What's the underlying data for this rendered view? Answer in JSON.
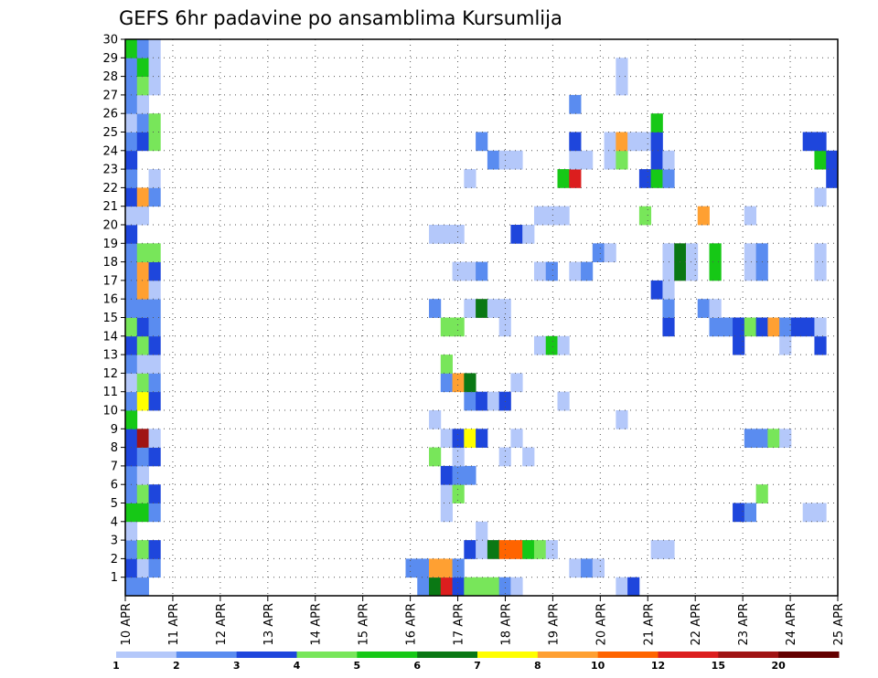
{
  "chart_data": {
    "type": "heatmap",
    "title": "GEFS 6hr padavine po ansamblima Kursumlija",
    "xlabel": "",
    "ylabel": "",
    "x_ticks": [
      "10 APR",
      "11 APR",
      "12 APR",
      "13 APR",
      "14 APR",
      "15 APR",
      "16 APR",
      "17 APR",
      "18 APR",
      "19 APR",
      "20 APR",
      "21 APR",
      "22 APR",
      "23 APR",
      "24 APR",
      "25 APR"
    ],
    "y_ticks": [
      "1",
      "2",
      "3",
      "4",
      "5",
      "6",
      "7",
      "8",
      "9",
      "10",
      "11",
      "12",
      "13",
      "14",
      "15",
      "16",
      "17",
      "18",
      "19",
      "20",
      "21",
      "22",
      "23",
      "24",
      "25",
      "26",
      "27",
      "28",
      "29",
      "30"
    ],
    "time_steps_6h": 61,
    "members": 30,
    "grid": "dotted",
    "legend": {
      "position": "bottom",
      "levels": [
        "1",
        "2",
        "3",
        "4",
        "5",
        "6",
        "7",
        "8",
        "10",
        "12",
        "15",
        "20"
      ],
      "colors": [
        "#b4c8fa",
        "#5a8cf0",
        "#1e46dc",
        "#78e65a",
        "#16c816",
        "#0a7814",
        "#ffff00",
        "#ffa032",
        "#ff6400",
        "#dc1e1e",
        "#a01414",
        "#640000"
      ]
    },
    "cell_encoding": "member: [[time_step_index, color_bin_index], ...]",
    "cells": {
      "1": [
        [
          0,
          1
        ],
        [
          1,
          1
        ],
        [
          25,
          1
        ],
        [
          26,
          5
        ],
        [
          27,
          9
        ],
        [
          28,
          2
        ],
        [
          29,
          3
        ],
        [
          30,
          3
        ],
        [
          31,
          3
        ],
        [
          32,
          1
        ],
        [
          33,
          0
        ],
        [
          42,
          0
        ],
        [
          43,
          2
        ]
      ],
      "2": [
        [
          0,
          2
        ],
        [
          1,
          0
        ],
        [
          2,
          1
        ],
        [
          24,
          1
        ],
        [
          25,
          1
        ],
        [
          26,
          7
        ],
        [
          27,
          7
        ],
        [
          28,
          1
        ],
        [
          38,
          0
        ],
        [
          39,
          1
        ],
        [
          40,
          0
        ]
      ],
      "3": [
        [
          0,
          1
        ],
        [
          1,
          3
        ],
        [
          2,
          2
        ],
        [
          29,
          2
        ],
        [
          30,
          0
        ],
        [
          31,
          5
        ],
        [
          32,
          8
        ],
        [
          33,
          8
        ],
        [
          34,
          4
        ],
        [
          35,
          3
        ],
        [
          36,
          0
        ],
        [
          45,
          0
        ],
        [
          46,
          0
        ]
      ],
      "4": [
        [
          0,
          0
        ],
        [
          30,
          0
        ]
      ],
      "5": [
        [
          0,
          4
        ],
        [
          1,
          4
        ],
        [
          2,
          1
        ],
        [
          27,
          0
        ],
        [
          52,
          2
        ],
        [
          53,
          1
        ],
        [
          58,
          0
        ],
        [
          59,
          0
        ]
      ],
      "6": [
        [
          0,
          1
        ],
        [
          1,
          3
        ],
        [
          2,
          2
        ],
        [
          27,
          0
        ],
        [
          28,
          3
        ],
        [
          54,
          3
        ]
      ],
      "7": [
        [
          0,
          1
        ],
        [
          1,
          0
        ],
        [
          27,
          2
        ],
        [
          28,
          1
        ],
        [
          29,
          1
        ]
      ],
      "8": [
        [
          0,
          2
        ],
        [
          1,
          1
        ],
        [
          2,
          2
        ],
        [
          26,
          3
        ],
        [
          28,
          0
        ],
        [
          32,
          0
        ],
        [
          34,
          0
        ]
      ],
      "9": [
        [
          0,
          2
        ],
        [
          1,
          10
        ],
        [
          2,
          0
        ],
        [
          27,
          0
        ],
        [
          28,
          2
        ],
        [
          29,
          6
        ],
        [
          30,
          2
        ],
        [
          33,
          0
        ],
        [
          53,
          1
        ],
        [
          54,
          1
        ],
        [
          55,
          3
        ],
        [
          56,
          0
        ]
      ],
      "10": [
        [
          0,
          4
        ],
        [
          26,
          0
        ],
        [
          42,
          0
        ]
      ],
      "11": [
        [
          0,
          1
        ],
        [
          1,
          6
        ],
        [
          2,
          2
        ],
        [
          29,
          1
        ],
        [
          30,
          2
        ],
        [
          31,
          0
        ],
        [
          32,
          2
        ],
        [
          37,
          0
        ]
      ],
      "12": [
        [
          0,
          0
        ],
        [
          1,
          3
        ],
        [
          2,
          1
        ],
        [
          27,
          1
        ],
        [
          28,
          7
        ],
        [
          29,
          5
        ],
        [
          33,
          0
        ]
      ],
      "13": [
        [
          0,
          1
        ],
        [
          1,
          0
        ],
        [
          2,
          0
        ],
        [
          27,
          3
        ]
      ],
      "14": [
        [
          0,
          2
        ],
        [
          1,
          3
        ],
        [
          2,
          2
        ],
        [
          35,
          0
        ],
        [
          36,
          4
        ],
        [
          37,
          0
        ],
        [
          52,
          2
        ],
        [
          56,
          0
        ],
        [
          59,
          2
        ]
      ],
      "15": [
        [
          0,
          3
        ],
        [
          1,
          2
        ],
        [
          2,
          1
        ],
        [
          27,
          3
        ],
        [
          28,
          3
        ],
        [
          32,
          0
        ],
        [
          46,
          2
        ],
        [
          50,
          1
        ],
        [
          51,
          1
        ],
        [
          52,
          2
        ],
        [
          53,
          3
        ],
        [
          54,
          2
        ],
        [
          55,
          7
        ],
        [
          56,
          1
        ],
        [
          57,
          2
        ],
        [
          58,
          2
        ],
        [
          59,
          0
        ]
      ],
      "16": [
        [
          0,
          1
        ],
        [
          1,
          1
        ],
        [
          2,
          1
        ],
        [
          26,
          1
        ],
        [
          29,
          0
        ],
        [
          30,
          5
        ],
        [
          31,
          0
        ],
        [
          32,
          0
        ],
        [
          46,
          1
        ],
        [
          49,
          1
        ],
        [
          50,
          0
        ]
      ],
      "17": [
        [
          0,
          1
        ],
        [
          1,
          7
        ],
        [
          2,
          0
        ],
        [
          45,
          2
        ],
        [
          46,
          0
        ]
      ],
      "18": [
        [
          0,
          1
        ],
        [
          1,
          7
        ],
        [
          2,
          2
        ],
        [
          28,
          0
        ],
        [
          29,
          0
        ],
        [
          30,
          1
        ],
        [
          35,
          0
        ],
        [
          36,
          1
        ],
        [
          38,
          0
        ],
        [
          39,
          1
        ],
        [
          46,
          0
        ],
        [
          47,
          5
        ],
        [
          48,
          0
        ],
        [
          50,
          4
        ],
        [
          53,
          0
        ],
        [
          54,
          1
        ],
        [
          59,
          0
        ]
      ],
      "19": [
        [
          0,
          1
        ],
        [
          1,
          3
        ],
        [
          2,
          3
        ],
        [
          40,
          1
        ],
        [
          41,
          0
        ],
        [
          46,
          0
        ],
        [
          47,
          5
        ],
        [
          48,
          0
        ],
        [
          50,
          4
        ],
        [
          53,
          0
        ],
        [
          54,
          1
        ],
        [
          59,
          0
        ]
      ],
      "20": [
        [
          0,
          2
        ],
        [
          26,
          0
        ],
        [
          27,
          0
        ],
        [
          28,
          0
        ],
        [
          33,
          2
        ],
        [
          34,
          0
        ]
      ],
      "21": [
        [
          0,
          0
        ],
        [
          1,
          0
        ],
        [
          35,
          0
        ],
        [
          36,
          0
        ],
        [
          37,
          0
        ],
        [
          44,
          3
        ],
        [
          49,
          7
        ],
        [
          53,
          0
        ]
      ],
      "22": [
        [
          0,
          2
        ],
        [
          1,
          7
        ],
        [
          2,
          1
        ],
        [
          59,
          0
        ]
      ],
      "23": [
        [
          0,
          1
        ],
        [
          2,
          0
        ],
        [
          29,
          0
        ],
        [
          37,
          4
        ],
        [
          38,
          9
        ],
        [
          44,
          2
        ],
        [
          45,
          4
        ],
        [
          46,
          1
        ],
        [
          60,
          2
        ]
      ],
      "24": [
        [
          0,
          2
        ],
        [
          31,
          1
        ],
        [
          32,
          0
        ],
        [
          33,
          0
        ],
        [
          38,
          0
        ],
        [
          39,
          0
        ],
        [
          41,
          0
        ],
        [
          42,
          3
        ],
        [
          45,
          2
        ],
        [
          46,
          0
        ],
        [
          59,
          4
        ],
        [
          60,
          2
        ]
      ],
      "25": [
        [
          0,
          1
        ],
        [
          1,
          2
        ],
        [
          2,
          3
        ],
        [
          30,
          1
        ],
        [
          38,
          2
        ],
        [
          41,
          0
        ],
        [
          42,
          7
        ],
        [
          43,
          0
        ],
        [
          44,
          0
        ],
        [
          45,
          2
        ],
        [
          58,
          2
        ],
        [
          59,
          2
        ]
      ],
      "26": [
        [
          0,
          0
        ],
        [
          1,
          1
        ],
        [
          2,
          3
        ],
        [
          45,
          4
        ]
      ],
      "27": [
        [
          0,
          1
        ],
        [
          1,
          0
        ],
        [
          38,
          1
        ]
      ],
      "28": [
        [
          0,
          1
        ],
        [
          1,
          3
        ],
        [
          2,
          0
        ],
        [
          42,
          0
        ]
      ],
      "29": [
        [
          0,
          1
        ],
        [
          1,
          4
        ],
        [
          2,
          0
        ],
        [
          42,
          0
        ]
      ],
      "30": [
        [
          0,
          4
        ],
        [
          1,
          1
        ],
        [
          2,
          0
        ]
      ]
    }
  }
}
